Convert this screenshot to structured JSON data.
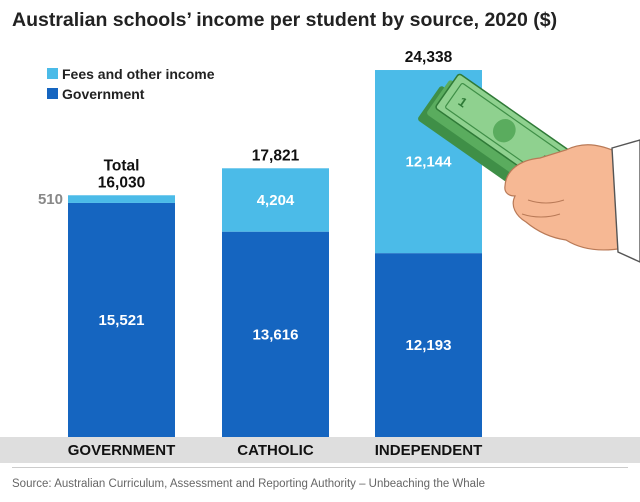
{
  "title": "Australian schools’ income per student by source, 2020 ($)",
  "source": "Source: Australian Curriculum, Assessment and Reporting Authority – Unbeaching the Whale",
  "colors": {
    "government": "#1565c0",
    "fees": "#4bbbe8",
    "axis_band": "#dedede"
  },
  "illustration": "hand-holding-banknotes",
  "chart_data": {
    "type": "bar",
    "stacked": true,
    "categories": [
      "GOVERNMENT",
      "CATHOLIC",
      "INDEPENDENT"
    ],
    "series": [
      {
        "name": "Government",
        "values": [
          15521,
          13616,
          12193
        ]
      },
      {
        "name": "Fees and other income",
        "values": [
          510,
          4204,
          12144
        ]
      }
    ],
    "totals": [
      16030,
      17821,
      24338
    ],
    "total_prefix": "Total",
    "ylim": [
      0,
      24338
    ],
    "legend": {
      "position": "top-left",
      "entries": [
        "Fees and other income",
        "Government"
      ]
    },
    "grid": false
  }
}
